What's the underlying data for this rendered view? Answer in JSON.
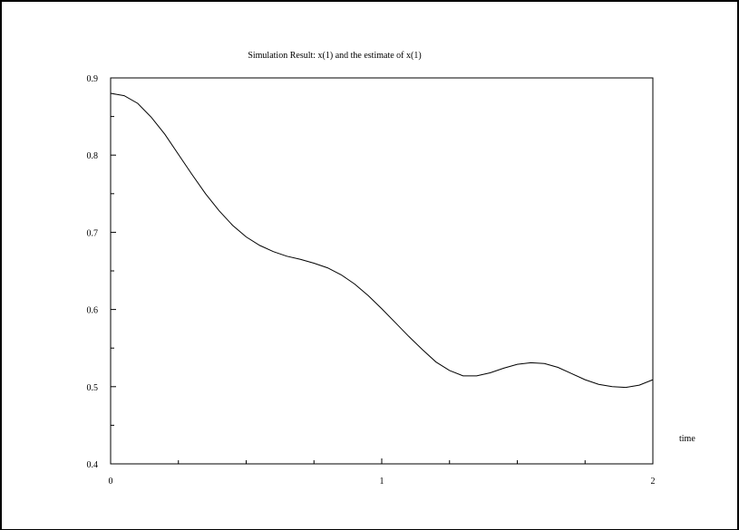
{
  "chart_data": {
    "type": "line",
    "title": "Simulation Result: x(1) and the estimate of x(1)",
    "xlabel": "time",
    "ylabel": "",
    "xlim": [
      0,
      2
    ],
    "ylim": [
      0.4,
      0.9
    ],
    "x_ticks": [
      0,
      1,
      2
    ],
    "x_tick_labels": [
      "0",
      "1",
      "2"
    ],
    "x_minor_step": 0.25,
    "y_ticks": [
      0.4,
      0.5,
      0.6,
      0.7,
      0.8,
      0.9
    ],
    "y_tick_labels": [
      "0.4",
      "0.5",
      "0.6",
      "0.7",
      "0.8",
      "0.9"
    ],
    "y_minor_step": 0.05,
    "grid": false,
    "line_color": "#000000",
    "series": [
      {
        "x": [
          0,
          0.05,
          0.1,
          0.15,
          0.2,
          0.25,
          0.3,
          0.35,
          0.4,
          0.45,
          0.5,
          0.55,
          0.6,
          0.65,
          0.7,
          0.75,
          0.8,
          0.85,
          0.9,
          0.95,
          1.0,
          1.05,
          1.1,
          1.15,
          1.2,
          1.25,
          1.3,
          1.35,
          1.4,
          1.45,
          1.5,
          1.55,
          1.6,
          1.65,
          1.7,
          1.75,
          1.8,
          1.85,
          1.9,
          1.95,
          2.0
        ],
        "y": [
          0.88,
          0.877,
          0.867,
          0.849,
          0.827,
          0.801,
          0.775,
          0.75,
          0.728,
          0.709,
          0.694,
          0.683,
          0.675,
          0.669,
          0.665,
          0.66,
          0.654,
          0.645,
          0.633,
          0.618,
          0.601,
          0.583,
          0.565,
          0.548,
          0.532,
          0.521,
          0.514,
          0.514,
          0.518,
          0.524,
          0.529,
          0.531,
          0.53,
          0.525,
          0.517,
          0.509,
          0.503,
          0.5,
          0.499,
          0.502,
          0.509
        ]
      }
    ]
  }
}
